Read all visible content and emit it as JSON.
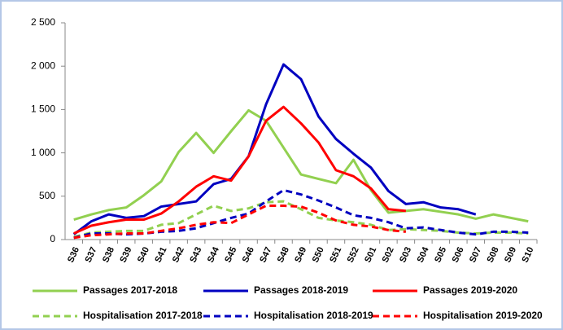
{
  "chart_data": {
    "type": "line",
    "categories": [
      "S36",
      "S37",
      "S38",
      "S39",
      "S40",
      "S41",
      "S42",
      "S43",
      "S44",
      "S45",
      "S46",
      "S47",
      "S48",
      "S49",
      "S50",
      "S51",
      "S52",
      "S01",
      "S02",
      "S03",
      "S04",
      "S05",
      "S06",
      "S07",
      "S08",
      "S09",
      "S10"
    ],
    "ylim": [
      0,
      2500
    ],
    "yticks": [
      0,
      500,
      {
        "value": 1000,
        "label": "1 000"
      },
      {
        "value": 1500,
        "label": "1 500"
      },
      {
        "value": 2000,
        "label": "2 000"
      },
      {
        "value": 2500,
        "label": "2 500"
      }
    ],
    "series": [
      {
        "name": "Passages 2017-2018",
        "color": "#92d050",
        "dashed": false,
        "values": [
          230,
          290,
          340,
          370,
          510,
          670,
          1010,
          1230,
          1000,
          1250,
          1490,
          1370,
          1060,
          750,
          700,
          650,
          920,
          570,
          310,
          330,
          350,
          320,
          290,
          240,
          290,
          250,
          210
        ]
      },
      {
        "name": "Passages 2018-2019",
        "color": "#0000c0",
        "dashed": false,
        "values": [
          60,
          210,
          290,
          250,
          270,
          380,
          410,
          440,
          640,
          700,
          960,
          1560,
          2020,
          1850,
          1420,
          1160,
          990,
          830,
          560,
          410,
          430,
          370,
          350,
          290,
          null,
          null,
          null
        ]
      },
      {
        "name": "Passages 2019-2020",
        "color": "#ff0000",
        "dashed": false,
        "values": [
          70,
          160,
          200,
          230,
          230,
          300,
          440,
          610,
          730,
          680,
          960,
          1370,
          1530,
          1340,
          1120,
          800,
          730,
          590,
          350,
          330,
          null,
          null,
          null,
          null,
          null,
          null,
          null
        ]
      },
      {
        "name": "Hospitalisation 2017-2018",
        "color": "#92d050",
        "dashed": true,
        "values": [
          30,
          80,
          90,
          100,
          100,
          170,
          190,
          290,
          390,
          330,
          360,
          430,
          440,
          350,
          250,
          220,
          200,
          170,
          110,
          120,
          110,
          100,
          80,
          70,
          80,
          80,
          70
        ]
      },
      {
        "name": "Hospitalisation 2018-2019",
        "color": "#0000c0",
        "dashed": true,
        "values": [
          20,
          70,
          70,
          60,
          70,
          90,
          100,
          130,
          190,
          250,
          300,
          440,
          570,
          520,
          450,
          370,
          280,
          250,
          200,
          130,
          140,
          110,
          80,
          60,
          90,
          90,
          80
        ]
      },
      {
        "name": "Hospitalisation 2019-2020",
        "color": "#ff0000",
        "dashed": true,
        "values": [
          20,
          50,
          60,
          70,
          70,
          100,
          130,
          170,
          200,
          190,
          290,
          390,
          390,
          380,
          310,
          220,
          170,
          150,
          110,
          90,
          null,
          null,
          null,
          null,
          null,
          null,
          null
        ]
      }
    ]
  }
}
